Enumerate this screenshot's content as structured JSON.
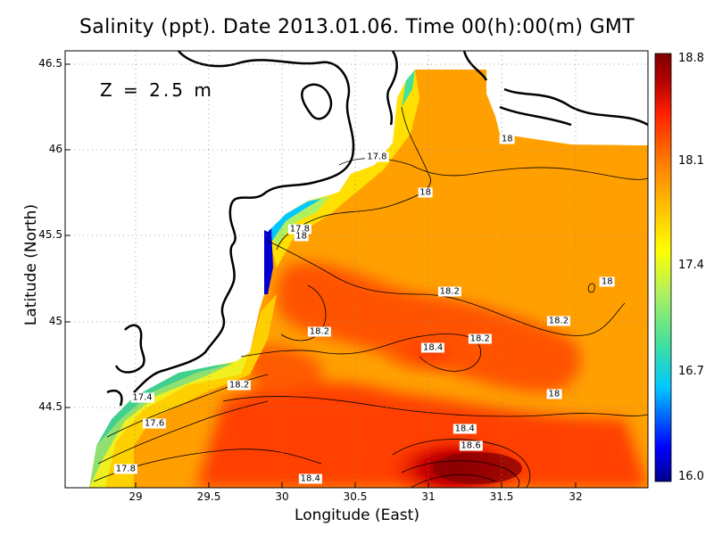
{
  "title": "Salinity (ppt). Date 2013.01.06. Time 00(h):00(m) GMT",
  "depth_label": "Z = 2.5 m",
  "xlabel": "Longitude (East)",
  "ylabel": "Latitude (North)",
  "chart_data": {
    "type": "heatmap",
    "title": "Salinity (ppt). Date 2013.01.06. Time 00(h):00(m) GMT",
    "xlabel": "Longitude (East)",
    "ylabel": "Latitude (North)",
    "x_ticks": [
      "29",
      "29.5",
      "30",
      "30.5",
      "31",
      "31.5",
      "32"
    ],
    "y_ticks": [
      "46.5",
      "46",
      "45.5",
      "45",
      "44.5"
    ],
    "xlim": [
      28.6,
      32.45
    ],
    "ylim": [
      44.03,
      46.55
    ],
    "grid": true,
    "colorbar": {
      "ticks": [
        "18.8",
        "18.1",
        "17.4",
        "16.7",
        "16.0"
      ],
      "range": [
        16.0,
        18.8
      ],
      "colors": [
        "#00008b",
        "#0000ff",
        "#00c8ff",
        "#40e0a0",
        "#b0f060",
        "#ffff00",
        "#ffc000",
        "#ff8000",
        "#ff2000",
        "#b00000",
        "#800000"
      ]
    },
    "contour_labels": [
      {
        "text": "18",
        "lon": 31.52,
        "lat": 46.04
      },
      {
        "text": "17.8",
        "lon": 30.66,
        "lat": 45.94
      },
      {
        "text": "18",
        "lon": 30.98,
        "lat": 45.73
      },
      {
        "text": "17.8",
        "lon": 30.15,
        "lat": 45.52
      },
      {
        "text": "18",
        "lon": 30.16,
        "lat": 45.48
      },
      {
        "text": "18.2",
        "lon": 31.14,
        "lat": 45.16
      },
      {
        "text": "18",
        "lon": 32.18,
        "lat": 45.22
      },
      {
        "text": "18.2",
        "lon": 31.86,
        "lat": 44.99
      },
      {
        "text": "18.2",
        "lon": 30.28,
        "lat": 44.93
      },
      {
        "text": "18.2",
        "lon": 31.34,
        "lat": 44.89
      },
      {
        "text": "18.4",
        "lon": 31.03,
        "lat": 44.84
      },
      {
        "text": "18.2",
        "lon": 29.75,
        "lat": 44.62
      },
      {
        "text": "17.4",
        "lon": 29.11,
        "lat": 44.55
      },
      {
        "text": "18",
        "lon": 31.83,
        "lat": 44.57
      },
      {
        "text": "17.6",
        "lon": 29.19,
        "lat": 44.4
      },
      {
        "text": "18.4",
        "lon": 31.24,
        "lat": 44.37
      },
      {
        "text": "18.6",
        "lon": 31.28,
        "lat": 44.27
      },
      {
        "text": "17.8",
        "lon": 29.0,
        "lat": 44.14
      },
      {
        "text": "18.4",
        "lon": 30.22,
        "lat": 44.08
      }
    ]
  }
}
